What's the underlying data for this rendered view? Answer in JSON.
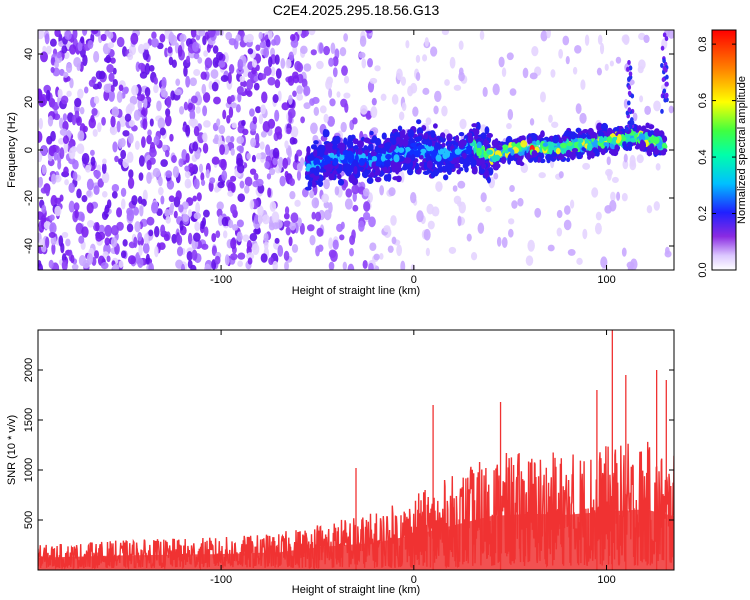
{
  "title": "C2E4.2025.295.18.56.G13",
  "chart_data": [
    {
      "type": "heatmap",
      "xlabel": "Height of straight line (km)",
      "ylabel": "Frequency (Hz)",
      "xlim": [
        -195,
        135
      ],
      "ylim": [
        -50,
        50
      ],
      "xticks": [
        -100,
        0,
        100
      ],
      "yticks": [
        -40,
        -20,
        0,
        20,
        40
      ],
      "colorbar": {
        "label": "Normalized spectral amplitude",
        "range": [
          0,
          0.85
        ],
        "ticks": [
          0.0,
          0.2,
          0.4,
          0.6,
          0.8
        ]
      },
      "ridge": {
        "description": "signal band near 0 Hz",
        "points": [
          [
            -55,
            -7
          ],
          [
            -40,
            -3
          ],
          [
            -20,
            -4
          ],
          [
            0,
            0
          ],
          [
            20,
            -2
          ],
          [
            30,
            2
          ],
          [
            40,
            -3
          ],
          [
            50,
            0
          ],
          [
            60,
            1
          ],
          [
            75,
            1
          ],
          [
            90,
            3
          ],
          [
            105,
            4
          ],
          [
            115,
            6
          ],
          [
            130,
            2
          ]
        ]
      }
    },
    {
      "type": "line",
      "xlabel": "Height of straight line (km)",
      "ylabel": "SNR (10 * v/v)",
      "xlim": [
        -195,
        135
      ],
      "ylim": [
        0,
        2400
      ],
      "xticks": [
        -100,
        0,
        100
      ],
      "yticks": [
        500,
        1000,
        1500,
        2000
      ],
      "color": "#f03232",
      "envelope": [
        {
          "x": -195,
          "low": 20,
          "high": 250
        },
        {
          "x": -150,
          "low": 20,
          "high": 300
        },
        {
          "x": -100,
          "low": 20,
          "high": 330
        },
        {
          "x": -70,
          "low": 20,
          "high": 370
        },
        {
          "x": -50,
          "low": 20,
          "high": 480
        },
        {
          "x": -20,
          "low": 20,
          "high": 580
        },
        {
          "x": 0,
          "low": 20,
          "high": 750
        },
        {
          "x": 20,
          "low": 30,
          "high": 950
        },
        {
          "x": 40,
          "low": 40,
          "high": 1150
        },
        {
          "x": 60,
          "low": 40,
          "high": 1200
        },
        {
          "x": 80,
          "low": 40,
          "high": 1180
        },
        {
          "x": 100,
          "low": 40,
          "high": 1250
        },
        {
          "x": 120,
          "low": 40,
          "high": 1300
        },
        {
          "x": 135,
          "low": 40,
          "high": 1150
        }
      ],
      "peaks": [
        {
          "x": -30,
          "y": 1020
        },
        {
          "x": 10,
          "y": 1650
        },
        {
          "x": 45,
          "y": 1680
        },
        {
          "x": 95,
          "y": 1800
        },
        {
          "x": 103,
          "y": 2400
        },
        {
          "x": 110,
          "y": 1950
        },
        {
          "x": 126,
          "y": 2000
        },
        {
          "x": 131,
          "y": 1900
        }
      ]
    }
  ]
}
